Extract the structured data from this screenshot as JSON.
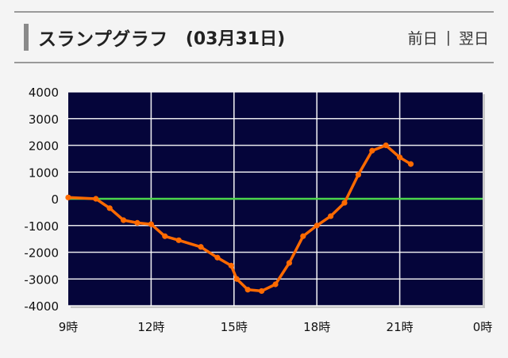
{
  "header": {
    "title": "スランプグラフ",
    "date": "(03月31日)",
    "prev_label": "前日",
    "separator": "|",
    "next_label": "翌日"
  },
  "colors": {
    "plot_bg": "#05053a",
    "grid": "#ffffff",
    "zero_line": "#4cd64c",
    "series": "#ff6a00"
  },
  "chart_data": {
    "type": "line",
    "title": "",
    "xlabel": "",
    "ylabel": "",
    "ylim": [
      -4000,
      4000
    ],
    "xlim": [
      9,
      24
    ],
    "y_ticks": [
      4000,
      3000,
      2000,
      1000,
      0,
      -1000,
      -2000,
      -3000,
      -4000
    ],
    "x_ticks": [
      {
        "value": 9,
        "label": "9時"
      },
      {
        "value": 12,
        "label": "12時"
      },
      {
        "value": 15,
        "label": "15時"
      },
      {
        "value": 18,
        "label": "18時"
      },
      {
        "value": 21,
        "label": "21時"
      },
      {
        "value": 24,
        "label": "0時"
      }
    ],
    "grid": true,
    "series": [
      {
        "x": [
          9.0,
          10.0,
          10.5,
          11.0,
          11.5,
          12.0,
          12.5,
          13.0,
          13.8,
          14.4,
          14.9,
          15.1,
          15.5,
          16.0,
          16.5,
          17.0,
          17.5,
          18.0,
          18.5,
          19.0,
          19.5,
          20.0,
          20.5,
          21.0,
          21.4
        ],
        "y": [
          50,
          0,
          -350,
          -800,
          -900,
          -950,
          -1400,
          -1550,
          -1800,
          -2200,
          -2500,
          -3000,
          -3400,
          -3450,
          -3200,
          -2400,
          -1400,
          -1000,
          -650,
          -150,
          900,
          1800,
          2000,
          1550,
          1300
        ]
      }
    ]
  }
}
